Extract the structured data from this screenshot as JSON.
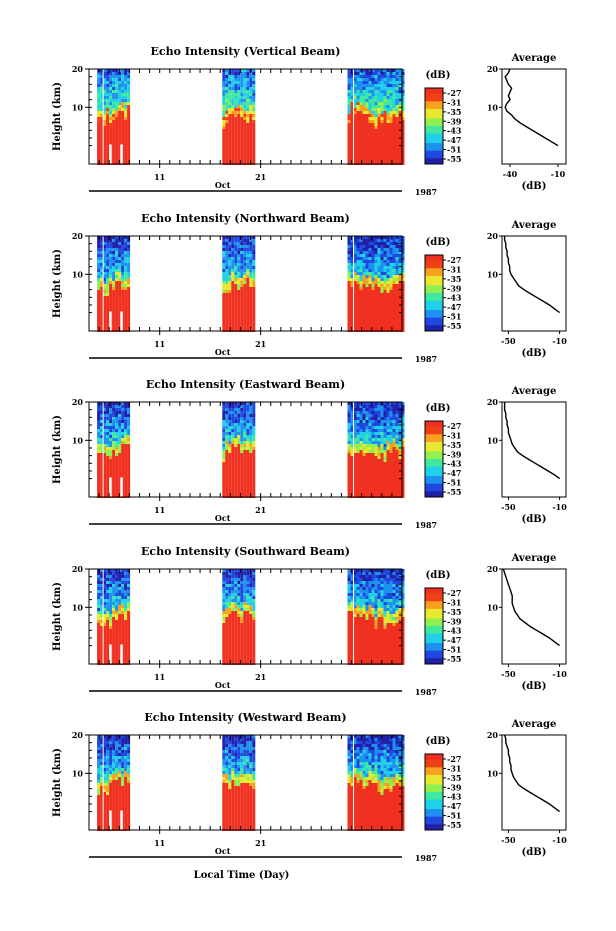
{
  "chart_data": [
    {
      "type": "heatmap",
      "title": "Echo Intensity (Vertical Beam)",
      "ylabel": "Height (km)",
      "ylim": [
        0,
        20
      ],
      "yticks": [
        "20",
        "10"
      ],
      "xticks": [
        "11",
        "21"
      ],
      "month_label": "Oct",
      "year_label": "1987",
      "colorbar": {
        "unit": "(dB)",
        "ticks": [
          "-27",
          "-31",
          "-35",
          "-39",
          "-43",
          "-47",
          "-51",
          "-55"
        ]
      },
      "observation_blocks_day": [
        [
          4.8,
          7.9
        ],
        [
          17.2,
          20.2
        ],
        [
          29.6,
          35
        ]
      ],
      "profile": {
        "title": "Average",
        "xlabel": "(dB)",
        "xticks": [
          "-40",
          "-10"
        ],
        "xlim": [
          -45,
          -5
        ],
        "heights": [
          0,
          1,
          2,
          3,
          4,
          5,
          6,
          7,
          8,
          9,
          10,
          11,
          12,
          13,
          14,
          15,
          16,
          17,
          18,
          19,
          20
        ],
        "values": [
          -10,
          -14,
          -18,
          -22,
          -26,
          -30,
          -34,
          -37,
          -39,
          -42,
          -43,
          -42,
          -40,
          -41,
          -40,
          -39,
          -41,
          -42,
          -43,
          -41,
          -40
        ]
      }
    },
    {
      "type": "heatmap",
      "title": "Echo Intensity (Northward Beam)",
      "ylabel": "Height (km)",
      "ylim": [
        0,
        20
      ],
      "yticks": [
        "20",
        "10"
      ],
      "xticks": [
        "11",
        "21"
      ],
      "month_label": "Oct",
      "year_label": "1987",
      "colorbar": {
        "unit": "(dB)",
        "ticks": [
          "-27",
          "-31",
          "-35",
          "-39",
          "-43",
          "-47",
          "-51",
          "-55"
        ]
      },
      "observation_blocks_day": [
        [
          4.8,
          7.9
        ],
        [
          17.2,
          20.2
        ],
        [
          29.6,
          35
        ]
      ],
      "profile": {
        "title": "Average",
        "xlabel": "(dB)",
        "xticks": [
          "-50",
          "-10"
        ],
        "xlim": [
          -55,
          -5
        ],
        "heights": [
          0,
          1,
          2,
          3,
          4,
          5,
          6,
          7,
          8,
          9,
          10,
          11,
          12,
          13,
          14,
          15,
          16,
          17,
          18,
          19,
          20
        ],
        "values": [
          -10,
          -14,
          -18,
          -23,
          -28,
          -33,
          -38,
          -42,
          -44,
          -46,
          -48,
          -49,
          -49,
          -50,
          -50,
          -51,
          -51,
          -52,
          -52,
          -53,
          -53
        ]
      }
    },
    {
      "type": "heatmap",
      "title": "Echo Intensity (Eastward Beam)",
      "ylabel": "Height (km)",
      "ylim": [
        0,
        20
      ],
      "yticks": [
        "20",
        "10"
      ],
      "xticks": [
        "11",
        "21"
      ],
      "month_label": "Oct",
      "year_label": "1987",
      "colorbar": {
        "unit": "(dB)",
        "ticks": [
          "-27",
          "-31",
          "-35",
          "-39",
          "-43",
          "-47",
          "-51",
          "-55"
        ]
      },
      "observation_blocks_day": [
        [
          4.8,
          7.9
        ],
        [
          17.2,
          20.2
        ],
        [
          29.6,
          35
        ]
      ],
      "profile": {
        "title": "Average",
        "xlabel": "(dB)",
        "xticks": [
          "-50",
          "-10"
        ],
        "xlim": [
          -55,
          -5
        ],
        "heights": [
          0,
          1,
          2,
          3,
          4,
          5,
          6,
          7,
          8,
          9,
          10,
          11,
          12,
          13,
          14,
          15,
          16,
          17,
          18,
          19,
          20
        ],
        "values": [
          -10,
          -14,
          -19,
          -24,
          -29,
          -34,
          -39,
          -43,
          -45,
          -47,
          -48,
          -49,
          -50,
          -50,
          -51,
          -51,
          -52,
          -52,
          -53,
          -53,
          -53
        ]
      }
    },
    {
      "type": "heatmap",
      "title": "Echo Intensity (Southward Beam)",
      "ylabel": "Height (km)",
      "ylim": [
        0,
        20
      ],
      "yticks": [
        "20",
        "10"
      ],
      "xticks": [
        "11",
        "21"
      ],
      "month_label": "Oct",
      "year_label": "1987",
      "colorbar": {
        "unit": "(dB)",
        "ticks": [
          "-27",
          "-31",
          "-35",
          "-39",
          "-43",
          "-47",
          "-51",
          "-55"
        ]
      },
      "observation_blocks_day": [
        [
          4.8,
          7.9
        ],
        [
          17.2,
          20.2
        ],
        [
          29.6,
          35
        ]
      ],
      "profile": {
        "title": "Average",
        "xlabel": "(dB)",
        "xticks": [
          "-50",
          "-10"
        ],
        "xlim": [
          -55,
          -5
        ],
        "heights": [
          0,
          1,
          2,
          3,
          4,
          5,
          6,
          7,
          8,
          9,
          10,
          11,
          12,
          13,
          14,
          15,
          16,
          17,
          18,
          19,
          20
        ],
        "values": [
          -10,
          -14,
          -18,
          -23,
          -28,
          -33,
          -37,
          -41,
          -43,
          -45,
          -46,
          -47,
          -47,
          -47,
          -48,
          -49,
          -50,
          -51,
          -52,
          -53,
          -54
        ]
      }
    },
    {
      "type": "heatmap",
      "title": "Echo Intensity (Westward Beam)",
      "ylabel": "Height (km)",
      "ylim": [
        0,
        20
      ],
      "yticks": [
        "20",
        "10"
      ],
      "xticks": [
        "11",
        "21"
      ],
      "month_label": "Oct",
      "year_label": "1987",
      "colorbar": {
        "unit": "(dB)",
        "ticks": [
          "-27",
          "-31",
          "-35",
          "-39",
          "-43",
          "-47",
          "-51",
          "-55"
        ]
      },
      "observation_blocks_day": [
        [
          4.8,
          7.9
        ],
        [
          17.2,
          20.2
        ],
        [
          29.6,
          35
        ]
      ],
      "profile": {
        "title": "Average",
        "xlabel": "(dB)",
        "xticks": [
          "-50",
          "-10"
        ],
        "xlim": [
          -55,
          -5
        ],
        "heights": [
          0,
          1,
          2,
          3,
          4,
          5,
          6,
          7,
          8,
          9,
          10,
          11,
          12,
          13,
          14,
          15,
          16,
          17,
          18,
          19,
          20
        ],
        "values": [
          -10,
          -14,
          -18,
          -23,
          -28,
          -33,
          -38,
          -42,
          -44,
          -46,
          -47,
          -48,
          -48,
          -49,
          -49,
          -50,
          -50,
          -51,
          -52,
          -52,
          -53
        ]
      }
    }
  ],
  "footer": {
    "xlabel": "Local Time (Day)"
  },
  "colors": {
    "colormap": [
      "#2020a8",
      "#1f48e0",
      "#1e90f0",
      "#20d0e8",
      "#40e8a0",
      "#90f050",
      "#e8e830",
      "#f8a020",
      "#f04018",
      "#f03020"
    ],
    "surface": "#f03020",
    "axis": "#000000"
  }
}
